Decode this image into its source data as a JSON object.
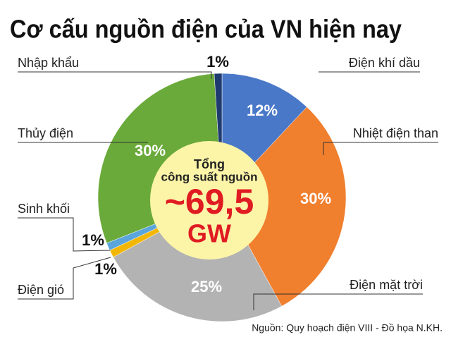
{
  "chart_data": {
    "type": "pie",
    "title": "Cơ cấu nguồn điện của VN hiện nay",
    "categories": [
      "Điện khí dầu",
      "Nhiệt điện than",
      "Điện mặt trời",
      "Điện gió",
      "Sinh khối",
      "Thủy điện",
      "Nhập khẩu"
    ],
    "values": [
      12,
      30,
      25,
      1,
      1,
      30,
      1
    ],
    "value_labels": [
      "12%",
      "30%",
      "25%",
      "1%",
      "1%",
      "30%",
      "1%"
    ],
    "colors": [
      "#4a78c8",
      "#f07f2e",
      "#b3b3b3",
      "#f2b705",
      "#5aa5dc",
      "#6aaa3a",
      "#1f3a6e"
    ],
    "center_text": [
      "Tổng",
      "công suất nguồn",
      "~69,5",
      "GW"
    ],
    "source": "Nguồn: Quy hoạch điện VIII - Đồ họa N.KH."
  }
}
